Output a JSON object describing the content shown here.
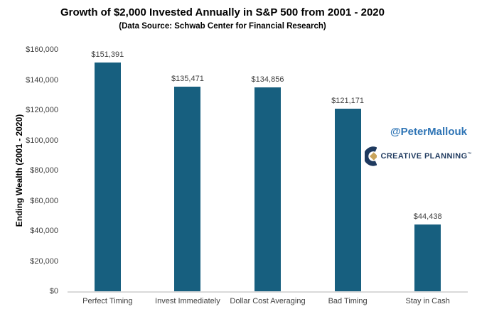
{
  "header": {
    "title": "Growth of $2,000 Invested Annually in S&P 500 from 2001 - 2020",
    "subtitle": "(Data Source: Schwab Center for Financial Research)"
  },
  "chart_data": {
    "type": "bar",
    "title": "Growth of $2,000 Invested Annually in S&P 500 from 2001 - 2020",
    "subtitle": "(Data Source: Schwab Center for Financial Research)",
    "categories": [
      "Perfect Timing",
      "Invest Immediately",
      "Dollar Cost Averaging",
      "Bad Timing",
      "Stay in Cash"
    ],
    "values": [
      151391,
      135471,
      134856,
      121171,
      44438
    ],
    "value_labels": [
      "$151,391",
      "$135,471",
      "$134,856",
      "$121,171",
      "$44,438"
    ],
    "xlabel": "",
    "ylabel": "Ending Wealth (2001 - 2020)",
    "ylim": [
      0,
      160000
    ],
    "ytick_step": 20000,
    "ytick_labels": [
      "$0",
      "$20,000",
      "$40,000",
      "$60,000",
      "$80,000",
      "$100,000",
      "$120,000",
      "$140,000",
      "$160,000"
    ],
    "grid": false,
    "legend": false,
    "bar_color": "#175f7f"
  },
  "watermark": {
    "handle": "@PeterMallouk",
    "brand": "CREATIVE PLANNING",
    "trademark": "™"
  },
  "colors": {
    "bar": "#175f7f",
    "handle_blue": "#2e74b5",
    "brand_navy": "#1f3a5f",
    "brand_gold": "#c9a45c",
    "axis_line": "#d9d9d9",
    "label_text": "#404040"
  }
}
